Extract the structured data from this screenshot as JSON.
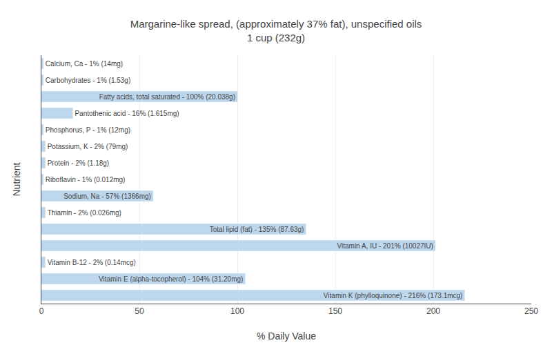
{
  "chart_data": {
    "type": "bar",
    "orientation": "horizontal",
    "title": "Margarine-like spread, (approximately 37% fat), unspecified oils\n1 cup (232g)",
    "x_label": "% Daily Value",
    "y_label": "Nutrient",
    "categories": [
      "Calcium, Ca - 1% (14mg)",
      "Carbohydrates - 1% (1.53g)",
      "Fatty acids, total saturated - 100% (20.038g)",
      "Pantothenic acid - 16% (1.615mg)",
      "Phosphorus, P - 1% (12mg)",
      "Potassium, K - 2% (79mg)",
      "Protein - 2% (1.18g)",
      "Riboflavin - 1% (0.012mg)",
      "Sodium, Na - 57% (1366mg)",
      "Thiamin - 2% (0.026mg)",
      "Total lipid (fat) - 135% (87.63g)",
      "Vitamin A, IU - 201% (10027IU)",
      "Vitamin B-12 - 2% (0.14mcg)",
      "Vitamin E (alpha-tocopherol) - 104% (31.20mg)",
      "Vitamin K (phylloquinone) - 216% (173.1mcg)"
    ],
    "values": [
      1,
      1,
      100,
      16,
      1,
      2,
      2,
      1,
      57,
      2,
      135,
      201,
      2,
      104,
      216
    ],
    "color": "#bdd7ee",
    "xlim": [
      0,
      250
    ],
    "xticks": [
      0,
      50,
      100,
      150,
      200,
      250
    ],
    "grid": true,
    "tick_labels": "x"
  }
}
